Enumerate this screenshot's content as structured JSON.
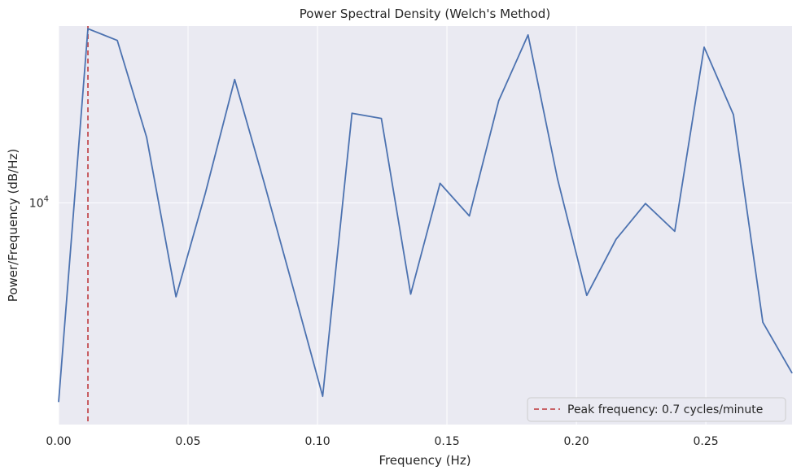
{
  "chart_data": {
    "type": "line",
    "title": "Power Spectral Density (Welch's Method)",
    "xlabel": "Frequency (Hz)",
    "ylabel": "Power/Frequency (dB/Hz)",
    "xlim": [
      0,
      0.2833
    ],
    "ylim_log10": [
      3.31,
      4.55
    ],
    "yscale": "log",
    "grid": true,
    "legend_position": "lower-right",
    "x_ticks": [
      0.0,
      0.05,
      0.1,
      0.15,
      0.2,
      0.25
    ],
    "x_tick_labels": [
      "0.00",
      "0.05",
      "0.10",
      "0.15",
      "0.20",
      "0.25"
    ],
    "y_ticks": [
      {
        "value": 10000,
        "base": "10",
        "exponent": "4"
      }
    ],
    "series": [
      {
        "name": "",
        "color": "#4c72b0",
        "x": [
          0.0,
          0.01133,
          0.02267,
          0.034,
          0.04533,
          0.05667,
          0.068,
          0.07933,
          0.09067,
          0.102,
          0.11333,
          0.12467,
          0.136,
          0.14733,
          0.15867,
          0.17,
          0.18133,
          0.19267,
          0.204,
          0.21533,
          0.22667,
          0.238,
          0.24933,
          0.26067,
          0.272,
          0.28333
        ],
        "y": [
          2400,
          34800,
          32000,
          16000,
          5100,
          10700,
          24200,
          11600,
          5400,
          2500,
          19000,
          18300,
          5200,
          11500,
          9100,
          20800,
          33300,
          11900,
          5150,
          7700,
          9950,
          8150,
          30500,
          18800,
          4250,
          2950
        ]
      }
    ],
    "reference_lines": [
      {
        "orientation": "vertical",
        "x": 0.01133,
        "style": "dashed",
        "color": "#c44e52",
        "label": "Peak frequency: 0.7 cycles/minute"
      }
    ],
    "colors": {
      "plot_background": "#eaeaf2",
      "grid": "#ffffff",
      "line": "#4c72b0",
      "peak_line": "#c44e52",
      "text": "#262626"
    }
  }
}
